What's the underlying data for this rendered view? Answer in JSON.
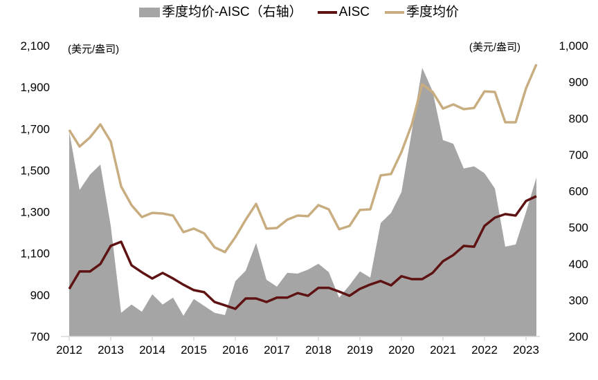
{
  "chart_data": {
    "type": "line+area",
    "legend": {
      "placement": "top",
      "entries": [
        "季度均价-AISC（右轴）",
        "AISC",
        "季度均价"
      ]
    },
    "left_axis": {
      "unit_label": "(美元/盎司)",
      "range": [
        700,
        2100
      ],
      "ticks": [
        "2,100",
        "1,900",
        "1,700",
        "1,500",
        "1,300",
        "1,100",
        "900",
        "700"
      ],
      "tick_values": [
        2100,
        1900,
        1700,
        1500,
        1300,
        1100,
        900,
        700
      ]
    },
    "right_axis": {
      "unit_label": "(美元/盎司)",
      "range": [
        200,
        1000
      ],
      "ticks": [
        "1,000",
        "900",
        "800",
        "700",
        "600",
        "500",
        "400",
        "300",
        "200"
      ],
      "tick_values": [
        1000,
        900,
        800,
        700,
        600,
        500,
        400,
        300,
        200
      ]
    },
    "x_axis": {
      "ticks": [
        "2012",
        "2013",
        "2014",
        "2015",
        "2016",
        "2017",
        "2018",
        "2019",
        "2020",
        "2021",
        "2022",
        "2023"
      ]
    },
    "x": [
      "2012Q1",
      "2012Q2",
      "2012Q3",
      "2012Q4",
      "2013Q1",
      "2013Q2",
      "2013Q3",
      "2013Q4",
      "2014Q1",
      "2014Q2",
      "2014Q3",
      "2014Q4",
      "2015Q1",
      "2015Q2",
      "2015Q3",
      "2015Q4",
      "2016Q1",
      "2016Q2",
      "2016Q3",
      "2016Q4",
      "2017Q1",
      "2017Q2",
      "2017Q3",
      "2017Q4",
      "2018Q1",
      "2018Q2",
      "2018Q3",
      "2018Q4",
      "2019Q1",
      "2019Q2",
      "2019Q3",
      "2019Q4",
      "2020Q1",
      "2020Q2",
      "2020Q3",
      "2020Q4",
      "2021Q1",
      "2021Q2",
      "2021Q3",
      "2021Q4",
      "2022Q1",
      "2022Q2",
      "2022Q3",
      "2022Q4",
      "2023Q1",
      "2023Q2"
    ],
    "series": [
      {
        "name": "季度均价-AISC（右轴）",
        "axis": "right",
        "kind": "area",
        "color": "#a5a5a5",
        "values": [
          764,
          603,
          645,
          673,
          504,
          265,
          288,
          268,
          316,
          288,
          307,
          257,
          303,
          284,
          265,
          259,
          352,
          381,
          457,
          356,
          337,
          375,
          373,
          384,
          400,
          377,
          307,
          341,
          379,
          362,
          512,
          540,
          597,
          764,
          939,
          875,
          740,
          730,
          662,
          668,
          649,
          607,
          447,
          453,
          542,
          637
        ]
      },
      {
        "name": "AISC",
        "axis": "left",
        "kind": "line",
        "color": "#5e1212",
        "values": [
          929,
          1013,
          1013,
          1049,
          1136,
          1156,
          1043,
          1009,
          979,
          1006,
          979,
          949,
          923,
          913,
          866,
          850,
          833,
          883,
          883,
          866,
          887,
          887,
          909,
          896,
          934,
          934,
          916,
          896,
          929,
          950,
          967,
          946,
          990,
          976,
          976,
          1006,
          1062,
          1092,
          1136,
          1132,
          1232,
          1272,
          1289,
          1282,
          1352,
          1375
        ]
      },
      {
        "name": "季度均价",
        "axis": "left",
        "kind": "line",
        "color": "#c8ad80",
        "values": [
          1694,
          1614,
          1658,
          1721,
          1638,
          1422,
          1332,
          1275,
          1295,
          1292,
          1282,
          1202,
          1219,
          1196,
          1129,
          1106,
          1178,
          1262,
          1338,
          1219,
          1222,
          1262,
          1282,
          1279,
          1332,
          1312,
          1216,
          1232,
          1309,
          1312,
          1475,
          1482,
          1588,
          1721,
          1914,
          1877,
          1797,
          1817,
          1794,
          1800,
          1880,
          1877,
          1731,
          1731,
          1894,
          2010
        ]
      }
    ]
  }
}
